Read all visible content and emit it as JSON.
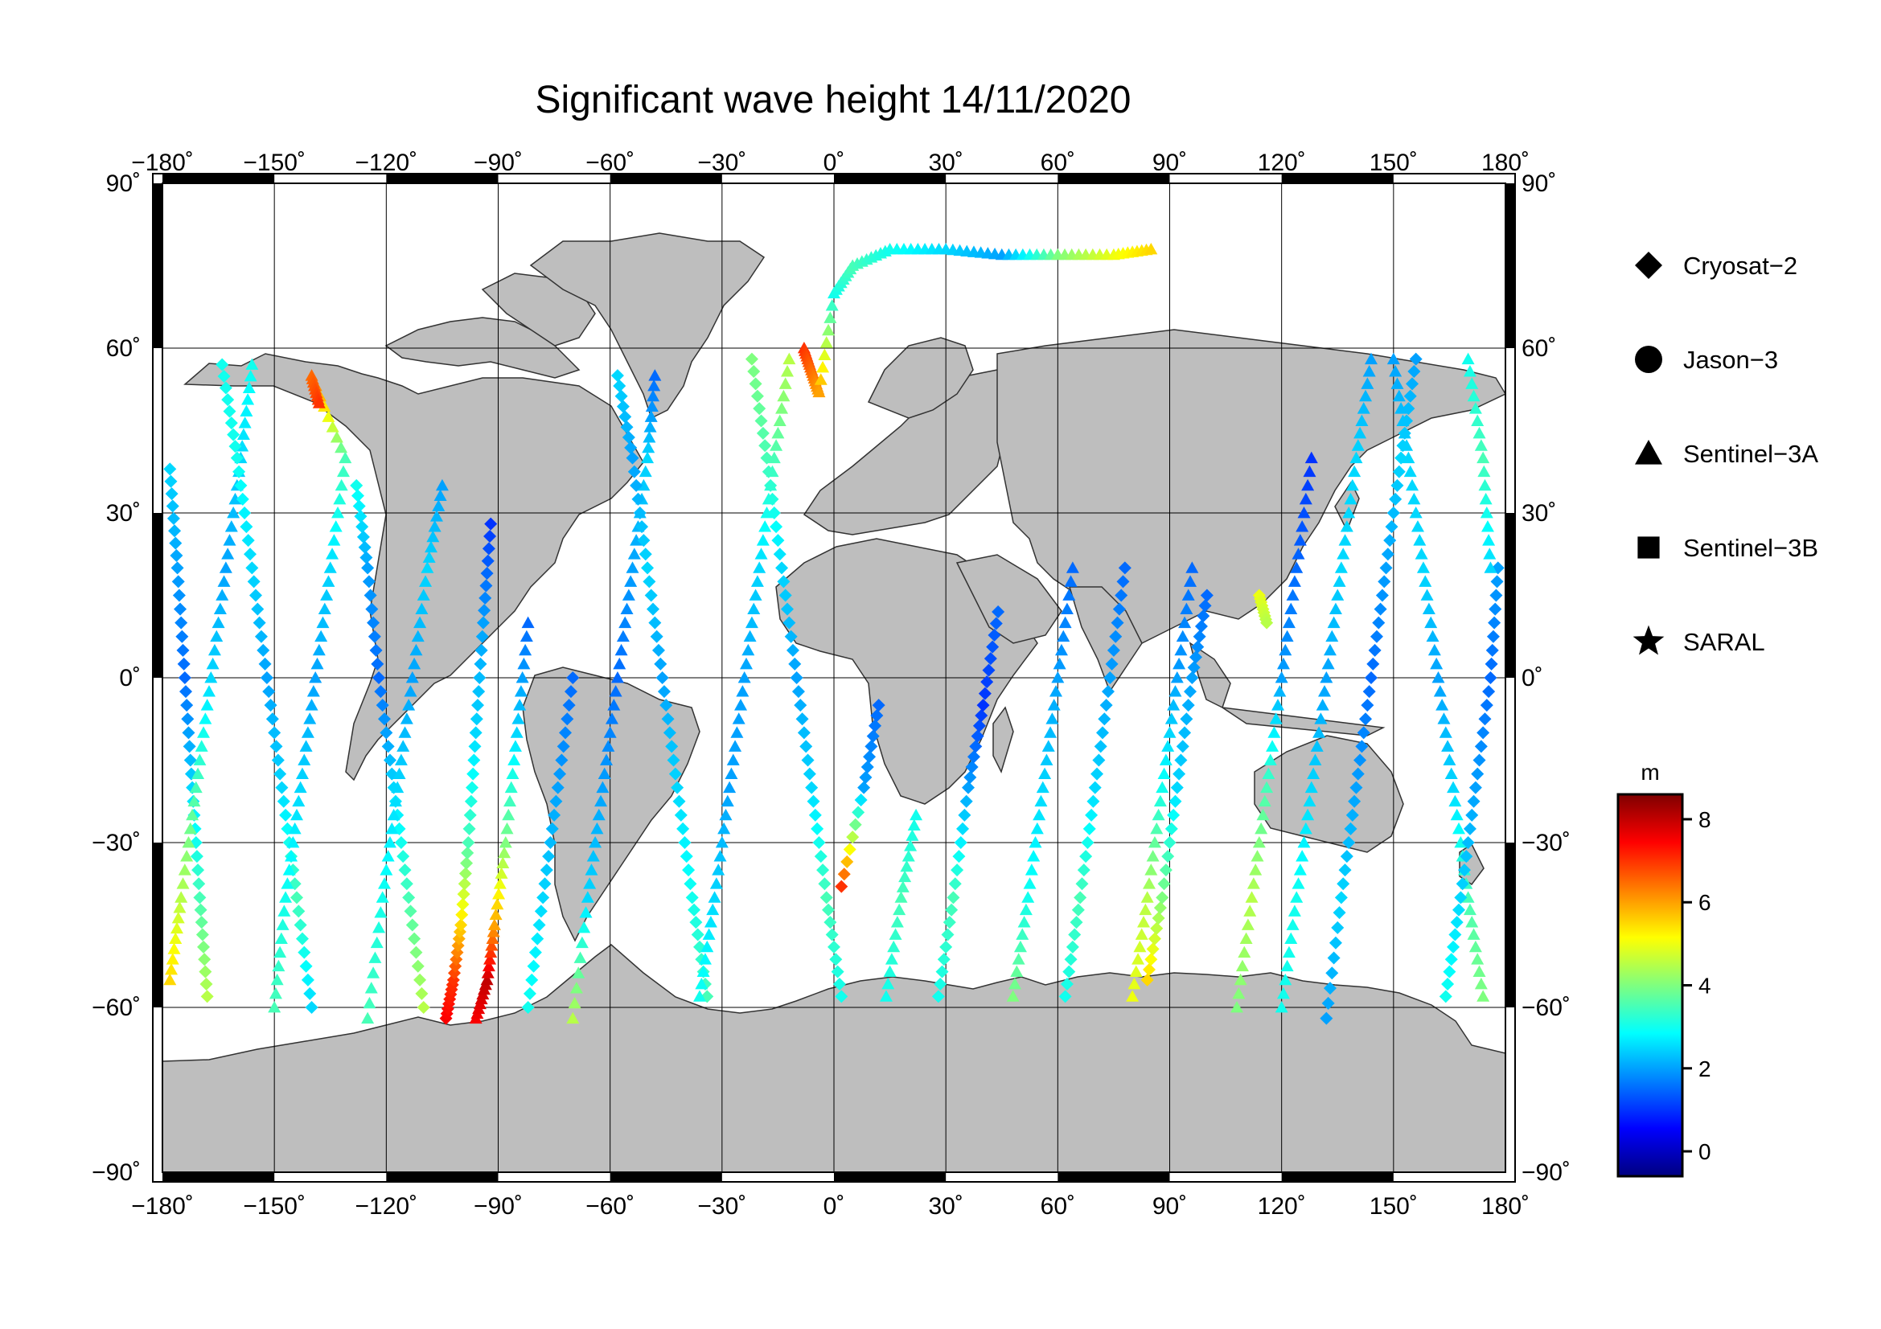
{
  "title": "Significant wave height 14/11/2020",
  "map": {
    "lon_range": [
      -180,
      180
    ],
    "lat_range": [
      -90,
      90
    ],
    "lon_ticks": [
      "−180˚",
      "−150˚",
      "−120˚",
      "−90˚",
      "−60˚",
      "−30˚",
      "0˚",
      "30˚",
      "60˚",
      "90˚",
      "120˚",
      "150˚",
      "180˚"
    ],
    "lat_ticks_left": [
      "90˚",
      "60˚",
      "30˚",
      "0˚",
      "−30˚",
      "−60˚",
      "−90˚"
    ],
    "lat_ticks_right": [
      "90˚",
      "60˚",
      "30˚",
      "0˚",
      "−30˚",
      "−60˚",
      "−90˚"
    ],
    "grid": true,
    "land_color": "#bebebe",
    "ocean_color": "#ffffff"
  },
  "legend": {
    "placement": "right",
    "items": [
      {
        "label": "Cryosat−2",
        "marker": "diamond"
      },
      {
        "label": "Jason−3",
        "marker": "circle"
      },
      {
        "label": "Sentinel−3A",
        "marker": "triangle"
      },
      {
        "label": "Sentinel−3B",
        "marker": "square"
      },
      {
        "label": "SARAL",
        "marker": "star"
      }
    ]
  },
  "colorbar": {
    "unit": "m",
    "range": [
      -0.6,
      8.6
    ],
    "ticks": [
      "0",
      "2",
      "4",
      "6",
      "8"
    ],
    "colormap": "jet"
  },
  "chart_data": {
    "type": "scatter",
    "title": "Significant wave height 14/11/2020",
    "xlabel": "",
    "ylabel": "",
    "xlim": [
      -180,
      180
    ],
    "ylim": [
      -90,
      90
    ],
    "value_unit": "m",
    "tracks": [
      {
        "marker": "diamond",
        "points": [
          [
            -178,
            38,
            2.5
          ],
          [
            -176,
            20,
            2.0
          ],
          [
            -174,
            0,
            1.5
          ],
          [
            -172,
            -20,
            2.5
          ],
          [
            -170,
            -40,
            3.5
          ],
          [
            -168,
            -58,
            4.5
          ]
        ]
      },
      {
        "marker": "triangle",
        "points": [
          [
            -178,
            -55,
            5.5
          ],
          [
            -175,
            -40,
            4.5
          ],
          [
            -171,
            -20,
            3.5
          ],
          [
            -167,
            0,
            2.5
          ],
          [
            -163,
            20,
            2.0
          ],
          [
            -159,
            40,
            2.5
          ],
          [
            -156,
            57,
            3.0
          ]
        ]
      },
      {
        "marker": "diamond",
        "points": [
          [
            -164,
            57,
            3.0
          ],
          [
            -160,
            40,
            3.0
          ],
          [
            -156,
            20,
            2.5
          ],
          [
            -152,
            0,
            2.0
          ],
          [
            -148,
            -20,
            2.5
          ],
          [
            -144,
            -40,
            3.5
          ],
          [
            -140,
            -60,
            2.5
          ]
        ]
      },
      {
        "marker": "triangle",
        "points": [
          [
            -150,
            -60,
            3.5
          ],
          [
            -147,
            -40,
            3.0
          ],
          [
            -143,
            -20,
            2.5
          ],
          [
            -139,
            0,
            2.0
          ],
          [
            -135,
            20,
            2.5
          ],
          [
            -131,
            40,
            3.5
          ],
          [
            -140,
            55,
            6.5
          ],
          [
            -138,
            50,
            7.0
          ]
        ]
      },
      {
        "marker": "diamond",
        "points": [
          [
            -128,
            35,
            3.0
          ],
          [
            -125,
            20,
            2.0
          ],
          [
            -122,
            0,
            1.5
          ],
          [
            -118,
            -20,
            2.5
          ],
          [
            -114,
            -40,
            3.5
          ],
          [
            -110,
            -60,
            4.5
          ]
        ]
      },
      {
        "marker": "triangle",
        "points": [
          [
            -125,
            -62,
            3.5
          ],
          [
            -121,
            -40,
            3.0
          ],
          [
            -117,
            -20,
            2.5
          ],
          [
            -113,
            0,
            2.0
          ],
          [
            -109,
            20,
            2.5
          ],
          [
            -105,
            35,
            2.0
          ]
        ]
      },
      {
        "marker": "diamond",
        "points": [
          [
            -104,
            -62,
            7.5
          ],
          [
            -102,
            -55,
            7.0
          ],
          [
            -100,
            -45,
            5.5
          ],
          [
            -98,
            -30,
            3.5
          ],
          [
            -96,
            -10,
            2.5
          ],
          [
            -94,
            10,
            2.0
          ],
          [
            -92,
            28,
            1.0
          ]
        ]
      },
      {
        "marker": "triangle",
        "points": [
          [
            -96,
            -62,
            7.5
          ],
          [
            -93,
            -55,
            8.0
          ],
          [
            -91,
            -45,
            6.0
          ],
          [
            -88,
            -30,
            4.0
          ],
          [
            -85,
            -10,
            2.5
          ],
          [
            -82,
            10,
            1.5
          ]
        ]
      },
      {
        "marker": "diamond",
        "points": [
          [
            -82,
            -60,
            3.0
          ],
          [
            -78,
            -40,
            2.5
          ],
          [
            -74,
            -20,
            2.0
          ],
          [
            -70,
            0,
            1.5
          ]
        ]
      },
      {
        "marker": "triangle",
        "points": [
          [
            -70,
            -62,
            4.5
          ],
          [
            -66,
            -40,
            2.5
          ],
          [
            -62,
            -20,
            2.0
          ],
          [
            -58,
            0,
            1.5
          ],
          [
            -54,
            20,
            2.0
          ],
          [
            -50,
            40,
            2.5
          ],
          [
            -48,
            55,
            1.5
          ]
        ]
      },
      {
        "marker": "diamond",
        "points": [
          [
            -58,
            55,
            2.5
          ],
          [
            -54,
            40,
            2.0
          ],
          [
            -50,
            20,
            2.5
          ],
          [
            -46,
            0,
            2.0
          ],
          [
            -42,
            -20,
            2.5
          ],
          [
            -38,
            -40,
            3.0
          ],
          [
            -34,
            -58,
            3.5
          ]
        ]
      },
      {
        "marker": "triangle",
        "points": [
          [
            -36,
            -58,
            3.0
          ],
          [
            -32,
            -40,
            2.5
          ],
          [
            -28,
            -20,
            2.0
          ],
          [
            -24,
            0,
            2.0
          ],
          [
            -20,
            20,
            2.5
          ],
          [
            -16,
            40,
            3.5
          ],
          [
            -12,
            58,
            4.5
          ]
        ]
      },
      {
        "marker": "diamond",
        "points": [
          [
            -22,
            58,
            4.0
          ],
          [
            -18,
            40,
            3.5
          ],
          [
            -14,
            20,
            2.5
          ],
          [
            -10,
            0,
            2.0
          ],
          [
            -6,
            -20,
            2.5
          ],
          [
            -2,
            -40,
            3.5
          ],
          [
            2,
            -58,
            3.0
          ]
        ]
      },
      {
        "marker": "triangle",
        "points": [
          [
            -8,
            60,
            7.0
          ],
          [
            -6,
            56,
            6.5
          ],
          [
            -4,
            52,
            6.0
          ],
          [
            0,
            70,
            3.0
          ],
          [
            5,
            75,
            3.5
          ],
          [
            15,
            78,
            3.0
          ],
          [
            30,
            78,
            2.5
          ],
          [
            45,
            77,
            2.0
          ],
          [
            60,
            77,
            4.0
          ],
          [
            75,
            77,
            5.0
          ],
          [
            85,
            78,
            5.5
          ]
        ]
      },
      {
        "marker": "diamond",
        "points": [
          [
            2,
            -38,
            7.0
          ],
          [
            8,
            -20,
            2.0
          ],
          [
            12,
            -5,
            1.5
          ]
        ]
      },
      {
        "marker": "triangle",
        "points": [
          [
            14,
            -58,
            3.0
          ],
          [
            18,
            -40,
            3.5
          ],
          [
            22,
            -25,
            3.0
          ]
        ]
      },
      {
        "marker": "diamond",
        "points": [
          [
            28,
            -58,
            3.0
          ],
          [
            32,
            -40,
            3.5
          ],
          [
            36,
            -20,
            2.0
          ],
          [
            40,
            -5,
            1.0
          ],
          [
            44,
            12,
            1.5
          ]
        ]
      },
      {
        "marker": "triangle",
        "points": [
          [
            48,
            -58,
            4.0
          ],
          [
            52,
            -40,
            3.0
          ],
          [
            56,
            -20,
            2.5
          ],
          [
            60,
            0,
            2.0
          ],
          [
            64,
            20,
            1.5
          ]
        ]
      },
      {
        "marker": "diamond",
        "points": [
          [
            62,
            -58,
            3.0
          ],
          [
            66,
            -40,
            3.5
          ],
          [
            70,
            -20,
            2.5
          ],
          [
            74,
            0,
            2.0
          ],
          [
            78,
            20,
            1.5
          ]
        ]
      },
      {
        "marker": "triangle",
        "points": [
          [
            80,
            -58,
            5.0
          ],
          [
            84,
            -40,
            4.5
          ],
          [
            88,
            -20,
            3.0
          ],
          [
            92,
            0,
            2.0
          ],
          [
            96,
            20,
            1.5
          ]
        ]
      },
      {
        "marker": "diamond",
        "points": [
          [
            84,
            -55,
            5.5
          ],
          [
            88,
            -40,
            4.0
          ],
          [
            92,
            -20,
            2.5
          ],
          [
            96,
            0,
            2.0
          ],
          [
            100,
            15,
            1.5
          ]
        ]
      },
      {
        "marker": "triangle",
        "points": [
          [
            108,
            -60,
            4.0
          ],
          [
            112,
            -40,
            4.5
          ],
          [
            116,
            -20,
            3.5
          ],
          [
            120,
            0,
            2.0
          ],
          [
            124,
            20,
            1.5
          ],
          [
            128,
            40,
            1.0
          ]
        ]
      },
      {
        "marker": "diamond",
        "points": [
          [
            114,
            15,
            5.0
          ],
          [
            116,
            10,
            4.5
          ]
        ]
      },
      {
        "marker": "triangle",
        "points": [
          [
            120,
            -60,
            3.0
          ],
          [
            124,
            -40,
            3.0
          ],
          [
            128,
            -20,
            2.5
          ],
          [
            132,
            0,
            2.0
          ],
          [
            136,
            20,
            2.5
          ],
          [
            140,
            40,
            2.5
          ],
          [
            144,
            58,
            2.0
          ]
        ]
      },
      {
        "marker": "diamond",
        "points": [
          [
            132,
            -62,
            2.0
          ],
          [
            136,
            -40,
            2.5
          ],
          [
            140,
            -20,
            2.0
          ],
          [
            144,
            0,
            1.5
          ],
          [
            148,
            20,
            2.0
          ],
          [
            152,
            40,
            2.5
          ],
          [
            156,
            58,
            2.0
          ]
        ]
      },
      {
        "marker": "triangle",
        "points": [
          [
            150,
            58,
            2.0
          ],
          [
            154,
            40,
            2.5
          ],
          [
            158,
            20,
            2.5
          ],
          [
            162,
            0,
            2.0
          ],
          [
            166,
            -20,
            2.5
          ],
          [
            170,
            -40,
            3.5
          ],
          [
            174,
            -58,
            4.0
          ]
        ]
      },
      {
        "marker": "diamond",
        "points": [
          [
            164,
            -58,
            3.0
          ],
          [
            168,
            -40,
            2.5
          ],
          [
            172,
            -20,
            2.0
          ],
          [
            176,
            0,
            1.5
          ],
          [
            178,
            20,
            2.0
          ]
        ]
      },
      {
        "marker": "triangle",
        "points": [
          [
            170,
            58,
            3.0
          ],
          [
            174,
            40,
            3.5
          ],
          [
            176,
            20,
            2.5
          ]
        ]
      }
    ]
  }
}
